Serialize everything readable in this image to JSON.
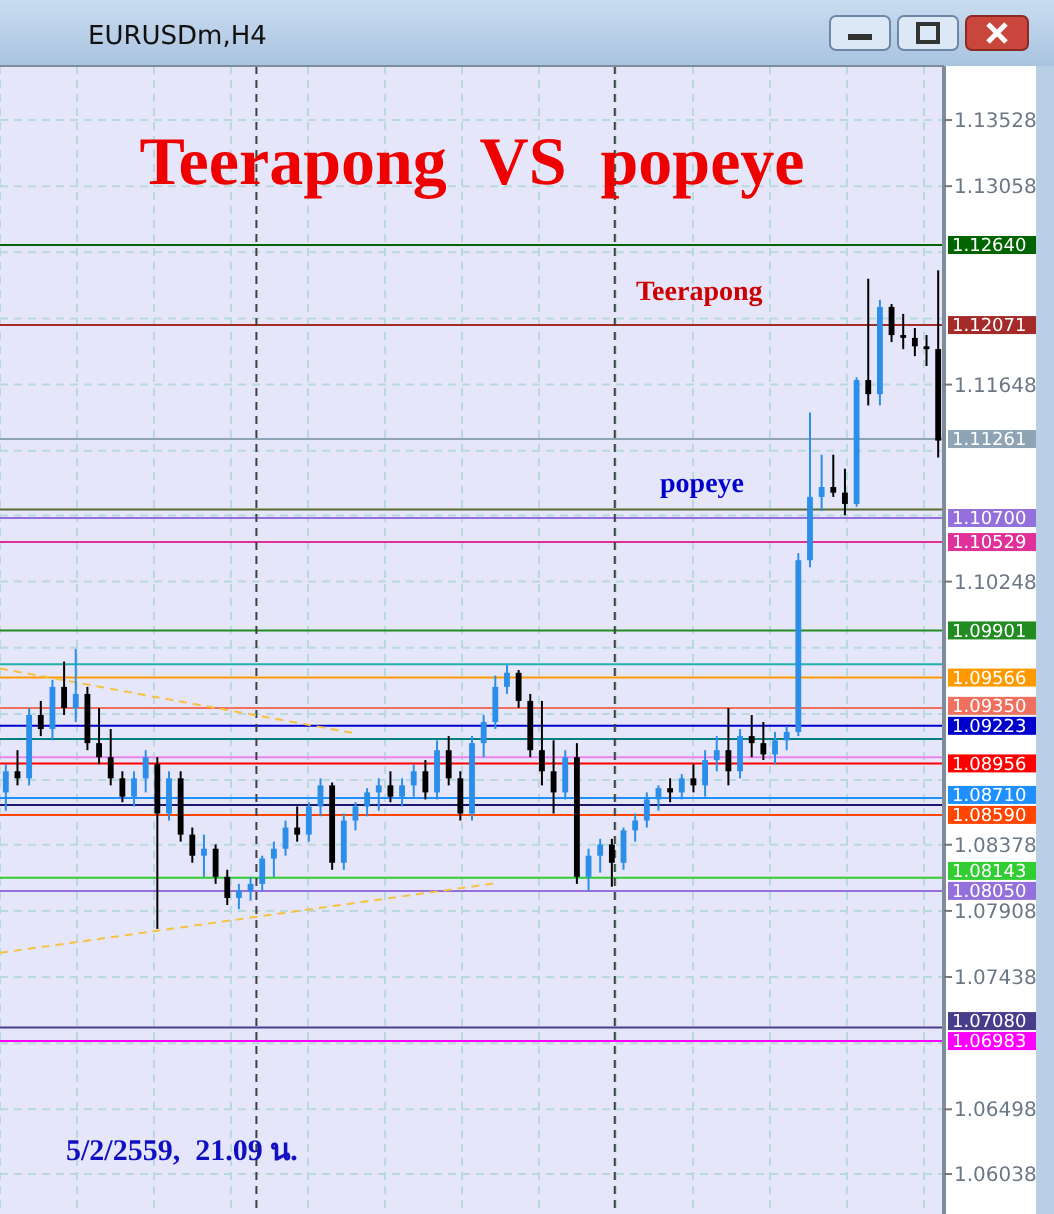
{
  "chart_data": {
    "type": "candlestick",
    "title": "Teerapong  VS  popeye",
    "subtitle": "EURUSDm,H4",
    "annotations": [
      "Teerapong",
      "popeye",
      "5/2/2559,  21.09 น."
    ],
    "colors": [
      "#2b8ee8",
      "#000000",
      "#2b8ee8",
      "#000000",
      "#2b8ee8",
      "#000000",
      "#2b8ee8",
      "#000000",
      "#000000",
      "#000000",
      "#000000",
      "#2b8ee8",
      "#2b8ee8",
      "#000000",
      "#2b8ee8",
      "#000000",
      "#000000",
      "#2b8ee8",
      "#000000",
      "#000000",
      "#2b8ee8",
      "#2b8ee8",
      "#2b8ee8",
      "#2b8ee8",
      "#2b8ee8",
      "#000000",
      "#2b8ee8",
      "#2b8ee8",
      "#000000",
      "#2b8ee8",
      "#2b8ee8",
      "#2b8ee8",
      "#2b8ee8",
      "#000000",
      "#2b8ee8",
      "#2b8ee8",
      "#000000",
      "#2b8ee8",
      "#000000",
      "#000000",
      "#2b8ee8",
      "#2b8ee8",
      "#2b8ee8",
      "#2b8ee8",
      "#000000",
      "#000000",
      "#000000",
      "#000000",
      "#2b8ee8",
      "#000000",
      "#2b8ee8",
      "#2b8ee8",
      "#000000",
      "#2b8ee8",
      "#2b8ee8",
      "#2b8ee8",
      "#2b8ee8",
      "#000000",
      "#2b8ee8",
      "#000000",
      "#2b8ee8",
      "#2b8ee8",
      "#000000",
      "#2b8ee8",
      "#000000",
      "#000000",
      "#2b8ee8",
      "#2b8ee8",
      "#2b8ee8",
      "#2b8ee8",
      "#2b8ee8",
      "#000000",
      "#000000",
      "#2b8ee8",
      "#000000",
      "#2b8ee8",
      "#000000",
      "#000000",
      "#000000",
      "#000000",
      "#000000"
    ],
    "categories": [
      null,
      null,
      null,
      null,
      null,
      null,
      null,
      null,
      null,
      null,
      null,
      null,
      null,
      null,
      null,
      null,
      null,
      null,
      null,
      null,
      null,
      null,
      null,
      null,
      null,
      null,
      null,
      null,
      null,
      null,
      null,
      null,
      null,
      null,
      null,
      null,
      null,
      null,
      null,
      null,
      null,
      null,
      null,
      null,
      null,
      null,
      null,
      null,
      null,
      null,
      null,
      null,
      null,
      null,
      null,
      null,
      null,
      null,
      null,
      null,
      null,
      null,
      null,
      null,
      null,
      null,
      null,
      null,
      null,
      null,
      null,
      null,
      null,
      null,
      null,
      null,
      null,
      null,
      null,
      null,
      null
    ],
    "ohlc": [
      [
        1.0875,
        1.0895,
        1.0862,
        1.089
      ],
      [
        1.089,
        1.0905,
        1.088,
        1.0885
      ],
      [
        1.0885,
        1.0935,
        1.088,
        1.093
      ],
      [
        1.093,
        1.094,
        1.0915,
        1.092
      ],
      [
        1.092,
        1.0955,
        1.0912,
        1.095
      ],
      [
        1.095,
        1.0968,
        1.093,
        1.0935
      ],
      [
        1.0935,
        1.0977,
        1.0925,
        1.0945
      ],
      [
        1.0945,
        1.095,
        1.0905,
        1.091
      ],
      [
        1.091,
        1.0935,
        1.0895,
        1.09
      ],
      [
        1.09,
        1.092,
        1.088,
        1.0885
      ],
      [
        1.0885,
        1.089,
        1.0868,
        1.0872
      ],
      [
        1.0872,
        1.089,
        1.0865,
        1.0885
      ],
      [
        1.0885,
        1.0905,
        1.0875,
        1.09
      ],
      [
        1.0895,
        1.09,
        1.0778,
        1.086
      ],
      [
        1.086,
        1.089,
        1.0855,
        1.0885
      ],
      [
        1.0885,
        1.089,
        1.084,
        1.0845
      ],
      [
        1.0845,
        1.085,
        1.0825,
        1.083
      ],
      [
        1.083,
        1.0845,
        1.0815,
        1.0835
      ],
      [
        1.0835,
        1.0838,
        1.081,
        1.0815
      ],
      [
        1.0815,
        1.082,
        1.0795,
        1.08
      ],
      [
        1.08,
        1.081,
        1.0792,
        1.0805
      ],
      [
        1.0805,
        1.0815,
        1.0798,
        1.081
      ],
      [
        1.081,
        1.083,
        1.0805,
        1.0828
      ],
      [
        1.0828,
        1.084,
        1.0815,
        1.0835
      ],
      [
        1.0835,
        1.0855,
        1.083,
        1.085
      ],
      [
        1.085,
        1.0865,
        1.084,
        1.0845
      ],
      [
        1.0845,
        1.0868,
        1.084,
        1.0865
      ],
      [
        1.0865,
        1.0885,
        1.0858,
        1.088
      ],
      [
        1.088,
        1.0882,
        1.082,
        1.0825
      ],
      [
        1.0825,
        1.086,
        1.082,
        1.0855
      ],
      [
        1.0855,
        1.0868,
        1.0848,
        1.0865
      ],
      [
        1.0865,
        1.0878,
        1.0858,
        1.0875
      ],
      [
        1.0875,
        1.0885,
        1.0862,
        1.088
      ],
      [
        1.088,
        1.089,
        1.0868,
        1.0872
      ],
      [
        1.0872,
        1.0885,
        1.0865,
        1.088
      ],
      [
        1.088,
        1.0895,
        1.0872,
        1.089
      ],
      [
        1.089,
        1.0898,
        1.087,
        1.0875
      ],
      [
        1.0875,
        1.0912,
        1.087,
        1.0905
      ],
      [
        1.0905,
        1.0915,
        1.088,
        1.0885
      ],
      [
        1.0885,
        1.089,
        1.0855,
        1.086
      ],
      [
        1.086,
        1.0915,
        1.0855,
        1.091
      ],
      [
        1.091,
        1.093,
        1.09,
        1.0925
      ],
      [
        1.0925,
        1.0958,
        1.092,
        1.095
      ],
      [
        1.095,
        1.0966,
        1.0945,
        1.096
      ],
      [
        1.096,
        1.0962,
        1.0935,
        1.094
      ],
      [
        1.094,
        1.0945,
        1.09,
        1.0905
      ],
      [
        1.0905,
        1.094,
        1.088,
        1.089
      ],
      [
        1.089,
        1.0912,
        1.086,
        1.0875
      ],
      [
        1.0875,
        1.0905,
        1.087,
        1.09
      ],
      [
        1.09,
        1.091,
        1.081,
        1.0815
      ],
      [
        1.0815,
        1.0835,
        1.0805,
        1.083
      ],
      [
        1.083,
        1.0842,
        1.0818,
        1.0838
      ],
      [
        1.0838,
        1.0842,
        1.0808,
        1.0825
      ],
      [
        1.0825,
        1.085,
        1.082,
        1.0848
      ],
      [
        1.0848,
        1.086,
        1.084,
        1.0855
      ],
      [
        1.0855,
        1.0875,
        1.085,
        1.087
      ],
      [
        1.087,
        1.088,
        1.0862,
        1.0878
      ],
      [
        1.0878,
        1.0885,
        1.0868,
        1.0875
      ],
      [
        1.0875,
        1.0888,
        1.087,
        1.0885
      ],
      [
        1.0885,
        1.0895,
        1.0875,
        1.088
      ],
      [
        1.088,
        1.0905,
        1.0872,
        1.0898
      ],
      [
        1.0898,
        1.0915,
        1.089,
        1.0905
      ],
      [
        1.0905,
        1.0935,
        1.088,
        1.089
      ],
      [
        1.089,
        1.092,
        1.0885,
        1.0915
      ],
      [
        1.0915,
        1.093,
        1.09,
        1.091
      ],
      [
        1.091,
        1.0925,
        1.0898,
        1.0902
      ],
      [
        1.0902,
        1.0918,
        1.0895,
        1.0912
      ],
      [
        1.0912,
        1.0922,
        1.0905,
        1.0918
      ],
      [
        1.0918,
        1.1045,
        1.0915,
        1.104
      ],
      [
        1.104,
        1.1145,
        1.1035,
        1.1085
      ],
      [
        1.1085,
        1.1115,
        1.1075,
        1.1092
      ],
      [
        1.1092,
        1.1115,
        1.1085,
        1.1088
      ],
      [
        1.1088,
        1.1105,
        1.1072,
        1.108
      ],
      [
        1.108,
        1.117,
        1.1078,
        1.1168
      ],
      [
        1.1168,
        1.124,
        1.115,
        1.1158
      ],
      [
        1.1158,
        1.1225,
        1.115,
        1.122
      ],
      [
        1.122,
        1.1222,
        1.1195,
        1.12
      ],
      [
        1.12,
        1.1215,
        1.119,
        1.1198
      ],
      [
        1.1198,
        1.1205,
        1.1185,
        1.1192
      ],
      [
        1.1192,
        1.12,
        1.1178,
        1.119
      ],
      [
        1.119,
        1.1246,
        1.1113,
        1.1125
      ]
    ],
    "ylim": [
      1.05754,
      1.13912
    ],
    "yticks": [
      1.06038,
      1.06498,
      {
        "value": 1.06968,
        "label": null
      },
      1.07438,
      1.07908,
      1.08378,
      {
        "value": 1.08838,
        "label": null
      },
      {
        "value": 1.09308,
        "label": null
      },
      {
        "value": 1.09778,
        "label": null
      },
      1.10248,
      {
        "value": 1.10718,
        "label": null
      },
      {
        "value": 1.11178,
        "label": null
      },
      1.11648,
      {
        "value": 1.12118,
        "label": null
      },
      {
        "value": 1.12588,
        "label": null
      },
      1.13058,
      1.13528
    ],
    "tick_labels": "y",
    "grid": true,
    "ref_lines": [
      {
        "axis": "y",
        "value": 1.1264,
        "label": "1.12640",
        "color": "#006400"
      },
      {
        "axis": "y",
        "value": 1.12071,
        "label": "1.12071",
        "color": "#a52a2a"
      },
      {
        "axis": "y",
        "value": 1.11261,
        "label": "1.11261",
        "color": "#8ea4b4"
      },
      {
        "axis": "y",
        "value": 1.1076,
        "color": "#556b2f"
      },
      {
        "axis": "y",
        "value": 1.107,
        "label": "1.10700",
        "color": "#9370db"
      },
      {
        "axis": "y",
        "value": 1.10529,
        "label": "1.10529",
        "color": "#e0309a"
      },
      {
        "axis": "y",
        "value": 1.09901,
        "label": "1.09901",
        "color": "#228b22"
      },
      {
        "axis": "y",
        "value": 1.0966,
        "color": "#20b2aa"
      },
      {
        "axis": "y",
        "value": 1.09566,
        "label": "1.09566",
        "color": "#ff9900"
      },
      {
        "axis": "y",
        "value": 1.0935,
        "label": "1.09350",
        "color": "#f07060"
      },
      {
        "axis": "y",
        "value": 1.09223,
        "label": "1.09223",
        "color": "#0000cd"
      },
      {
        "axis": "y",
        "value": 1.0913,
        "color": "#008080"
      },
      {
        "axis": "y",
        "value": 1.09,
        "color": "#ee82ee"
      },
      {
        "axis": "y",
        "value": 1.08956,
        "label": "1.08956",
        "color": "#ff0000"
      },
      {
        "axis": "y",
        "value": 1.0871,
        "label": "1.08710",
        "color": "#1e90ff"
      },
      {
        "axis": "y",
        "value": 1.0866,
        "color": "#191970"
      },
      {
        "axis": "y",
        "value": 1.0859,
        "label": "1.08590",
        "color": "#ff4500"
      },
      {
        "axis": "y",
        "value": 1.08143,
        "label": "1.08143",
        "color": "#32cd32"
      },
      {
        "axis": "y",
        "value": 1.0805,
        "label": "1.08050",
        "color": "#9370db"
      },
      {
        "axis": "y",
        "value": 1.0708,
        "label": "1.07080",
        "color": "#483d8b"
      },
      {
        "axis": "y",
        "value": 1.06983,
        "label": "1.06983",
        "color": "#ff00ff"
      }
    ]
  }
}
